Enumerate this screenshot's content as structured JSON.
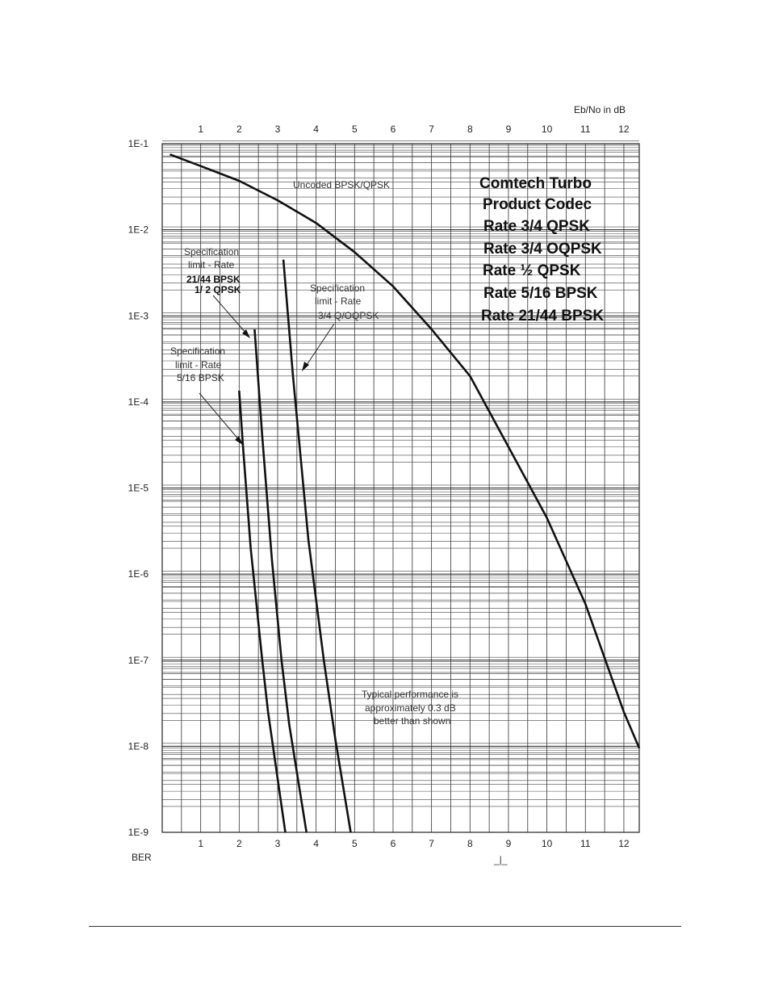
{
  "chart_data": {
    "type": "line",
    "title": "",
    "x_label": "Eb/No in dB",
    "y_label": "BER",
    "x_axis": {
      "min": 0,
      "max": 12.4,
      "ticks": [
        1,
        2,
        3,
        4,
        5,
        6,
        7,
        8,
        9,
        10,
        11,
        12
      ]
    },
    "y_axis": {
      "scale": "log",
      "min": 1e-09,
      "max": 0.1,
      "tick_labels": [
        "1E-1",
        "1E-2",
        "1E-3",
        "1E-4",
        "1E-5",
        "1E-6",
        "1E-7",
        "1E-8",
        "1E-9"
      ]
    },
    "grid": true,
    "legend_block": [
      "Comtech Turbo",
      "Product Codec",
      "Rate 3/4 QPSK",
      "Rate 3/4 OQPSK",
      "Rate  ½ QPSK",
      "Rate 5/16 BPSK",
      "Rate 21/44 BPSK"
    ],
    "series": [
      {
        "name": "Uncoded BPSK/QPSK",
        "points": [
          [
            0.2,
            0.075
          ],
          [
            1,
            0.055
          ],
          [
            2,
            0.037
          ],
          [
            3,
            0.022
          ],
          [
            4,
            0.012
          ],
          [
            5,
            0.0055
          ],
          [
            6,
            0.0022
          ],
          [
            7,
            0.0007
          ],
          [
            8,
            0.0002
          ],
          [
            9,
            3e-05
          ],
          [
            10,
            4.5e-06
          ],
          [
            11,
            4.5e-07
          ],
          [
            12,
            2.5e-08
          ],
          [
            12.4,
            9.5e-09
          ]
        ]
      },
      {
        "name": "Specification limit - Rate 5/16 BPSK",
        "points": [
          [
            2.0,
            0.000135
          ],
          [
            2.1,
            3e-05
          ],
          [
            2.3,
            2e-06
          ],
          [
            2.6,
            1e-07
          ],
          [
            2.75,
            2.5e-08
          ],
          [
            3.2,
            1e-09
          ]
        ]
      },
      {
        "name": "Specification limit - Rate 21/44 BPSK 1/2 QPSK",
        "points": [
          [
            2.4,
            0.0007
          ],
          [
            2.6,
            4e-05
          ],
          [
            2.85,
            1.5e-06
          ],
          [
            3.1,
            1e-07
          ],
          [
            3.3,
            1.8e-08
          ],
          [
            3.75,
            1e-09
          ]
        ]
      },
      {
        "name": "Specification limit - Rate 3/4 Q/OQPSK",
        "points": [
          [
            3.15,
            0.0045
          ],
          [
            3.4,
            0.0002
          ],
          [
            3.8,
            2.5e-06
          ],
          [
            4.2,
            1e-07
          ],
          [
            4.5,
            1.2e-08
          ],
          [
            4.9,
            1e-09
          ]
        ]
      }
    ]
  },
  "annotations": {
    "uncoded": "Uncoded BPSK/QPSK",
    "spec_half_qpsk": [
      "Specification",
      "limit - Rate"
    ],
    "spec_half_qpsk_bold": [
      "21/44 BPSK",
      "1/ 2 QPSK"
    ],
    "spec_34": [
      "Specification",
      "limit - Rate",
      "3/4 Q/OQPSK"
    ],
    "spec_516": [
      "Specification",
      "limit - Rate",
      "5/16 BPSK"
    ],
    "typical": [
      "Typical performance is",
      "approximately 0.3 dB",
      "better than shown"
    ],
    "axis_mark": "_|_"
  }
}
